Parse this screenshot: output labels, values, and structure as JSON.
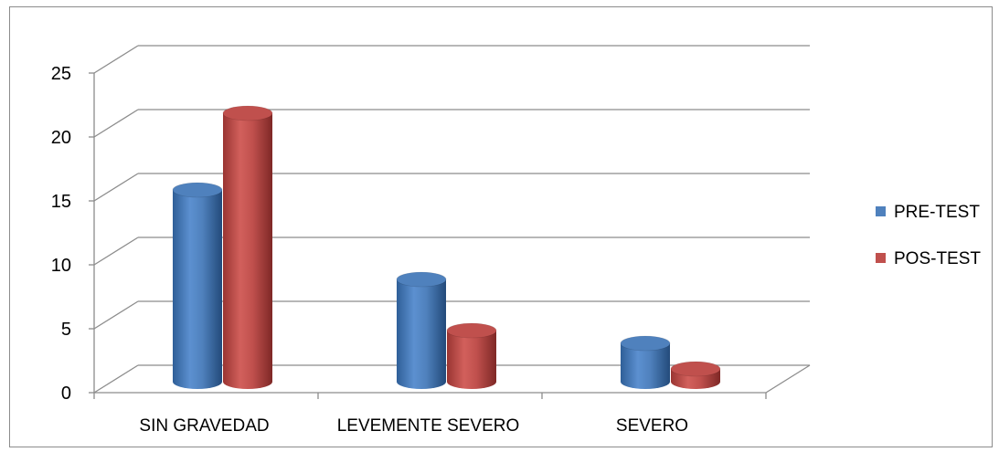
{
  "chart_data": {
    "type": "bar",
    "style": "3d-cylinder",
    "categories": [
      "SIN GRAVEDAD",
      "LEVEMENTE SEVERO",
      "SEVERO"
    ],
    "series": [
      {
        "name": "PRE-TEST",
        "values": [
          15,
          8,
          3
        ],
        "color": "#4F81BD"
      },
      {
        "name": "POS-TEST",
        "values": [
          21,
          4,
          1
        ],
        "color": "#C0504D"
      }
    ],
    "ylim": [
      0,
      25
    ],
    "yticks": [
      "0",
      "5",
      "10",
      "15",
      "20",
      "25"
    ],
    "grid": true,
    "legend_position": "right"
  }
}
